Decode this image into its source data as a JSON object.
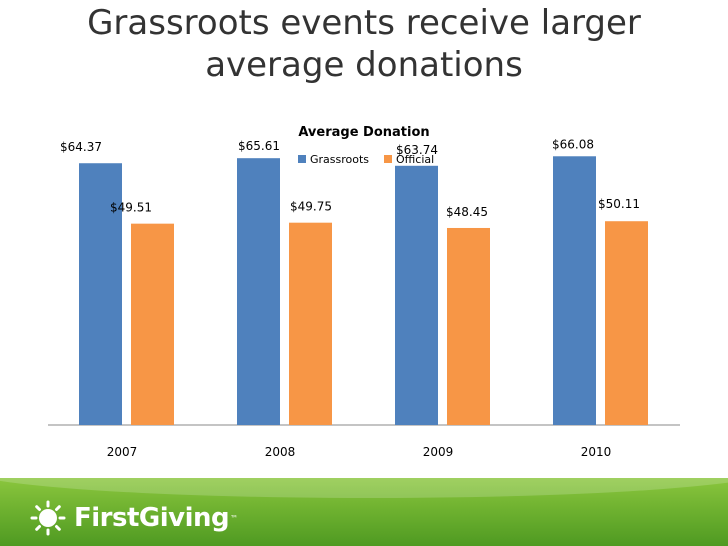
{
  "slide": {
    "title_line1": "Grassroots events receive larger",
    "title_line2": "average donations"
  },
  "chart_data": {
    "type": "bar",
    "title": "Average Donation",
    "categories": [
      "2007",
      "2008",
      "2009",
      "2010"
    ],
    "series": [
      {
        "name": "Grassroots",
        "color": "#4f81bd",
        "values": [
          64.37,
          65.61,
          63.74,
          66.08
        ],
        "labels": [
          "$64.37",
          "$65.61",
          "$63.74",
          "$66.08"
        ]
      },
      {
        "name": "Official",
        "color": "#f79646",
        "values": [
          49.51,
          49.75,
          48.45,
          50.11
        ],
        "labels": [
          "$49.51",
          "$49.75",
          "$48.45",
          "$50.11"
        ]
      }
    ],
    "ylim": [
      0,
      75
    ],
    "legend": "top",
    "grid": false,
    "data_labels": true
  },
  "footer": {
    "logo_text": "FirstGiving",
    "logo_mark": "™",
    "background": "#6fb230"
  }
}
